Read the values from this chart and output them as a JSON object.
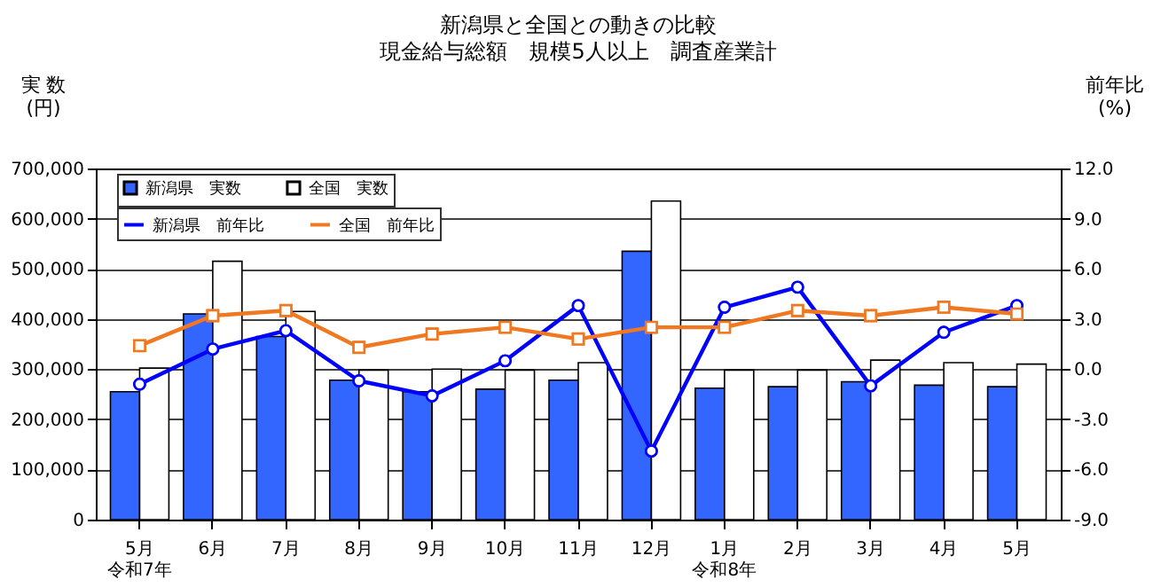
{
  "chart_data": {
    "type": "bar",
    "title": "新潟県と全国との動きの比較",
    "subtitle": "現金給与総額　規模5人以上　調査産業計",
    "ylabel": "実 数\n(円)",
    "y2label": "前年比\n(%)",
    "categories": [
      "5月",
      "6月",
      "7月",
      "8月",
      "9月",
      "10月",
      "11月",
      "12月",
      "1月",
      "2月",
      "3月",
      "4月",
      "5月"
    ],
    "annotations": [
      "令和7年",
      "令和8年"
    ],
    "series": [
      {
        "name": "新潟県　実数",
        "color": "#3366ff",
        "values": [
          255000,
          410000,
          365000,
          278000,
          255000,
          260000,
          278000,
          535000,
          262000,
          265000,
          275000,
          268000,
          265000
        ]
      },
      {
        "name": "全国　実数",
        "color": "#ffffff",
        "values": [
          302000,
          515000,
          415000,
          298000,
          300000,
          298000,
          313000,
          635000,
          298000,
          298000,
          318000,
          313000,
          310000
        ]
      },
      {
        "name": "新潟県　前年比",
        "type": "line",
        "axis": "y2",
        "color": "#0000ff",
        "marker": "circle",
        "values": [
          -0.9,
          1.2,
          2.3,
          -0.7,
          -1.6,
          0.5,
          3.8,
          -4.9,
          3.7,
          4.9,
          -1.0,
          2.2,
          3.8
        ]
      },
      {
        "name": "全国　前年比",
        "type": "line",
        "axis": "y2",
        "color": "#f07820",
        "marker": "square",
        "values": [
          1.4,
          3.2,
          3.5,
          1.3,
          2.1,
          2.5,
          1.8,
          2.5,
          2.5,
          3.5,
          3.2,
          3.7,
          3.3
        ]
      }
    ],
    "ylim": [
      0,
      700000
    ],
    "yticks": [
      {
        "value": 0,
        "label": "0"
      },
      {
        "value": 100000,
        "label": "100,000"
      },
      {
        "value": 200000,
        "label": "200,000"
      },
      {
        "value": 300000,
        "label": "300,000"
      },
      {
        "value": 400000,
        "label": "400,000"
      },
      {
        "value": 500000,
        "label": "500,000"
      },
      {
        "value": 600000,
        "label": "600,000"
      },
      {
        "value": 700000,
        "label": "700,000"
      }
    ],
    "y2lim": [
      -9,
      12
    ],
    "y2ticks": [
      {
        "value": -9,
        "label": "-9.0"
      },
      {
        "value": -6,
        "label": "-6.0"
      },
      {
        "value": -3,
        "label": "-3.0"
      },
      {
        "value": 0,
        "label": "0.0"
      },
      {
        "value": 3,
        "label": "3.0"
      },
      {
        "value": 6,
        "label": "6.0"
      },
      {
        "value": 9,
        "label": "9.0"
      },
      {
        "value": 12,
        "label": "12.0"
      }
    ],
    "grid": "y",
    "legend": "top left",
    "line_style": "solid"
  }
}
